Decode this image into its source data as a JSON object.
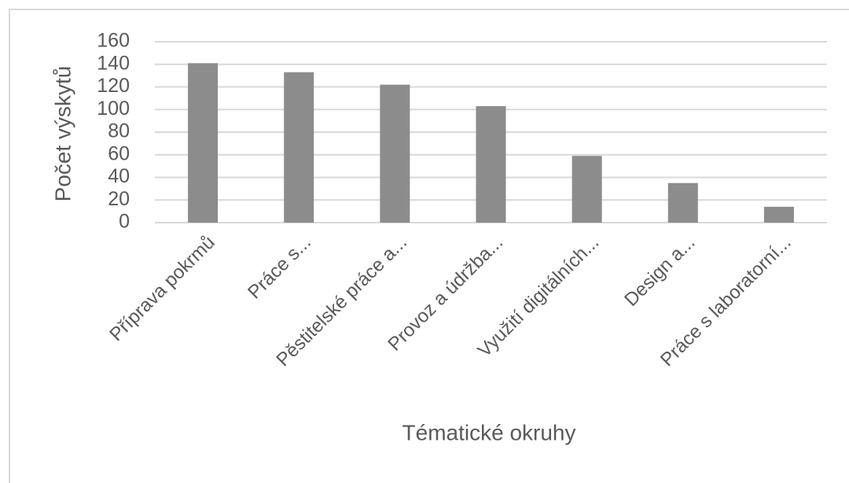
{
  "chart_data": {
    "type": "bar",
    "x_label": "Tématické okruhy",
    "y_label": "Počet výskytů",
    "categories": [
      "Příprava pokrmů",
      "Práce s...",
      "Pěstitelské práce a...",
      "Provoz a údržba...",
      "Využití digitálních...",
      "Design a...",
      "Práce s laboratorní..."
    ],
    "values": [
      141,
      133,
      122,
      103,
      59,
      35,
      14
    ],
    "color": "#8c8c8c",
    "ylim": [
      0,
      160
    ],
    "yticks": [
      0,
      20,
      40,
      60,
      80,
      100,
      120,
      140,
      160
    ],
    "grid": true
  }
}
